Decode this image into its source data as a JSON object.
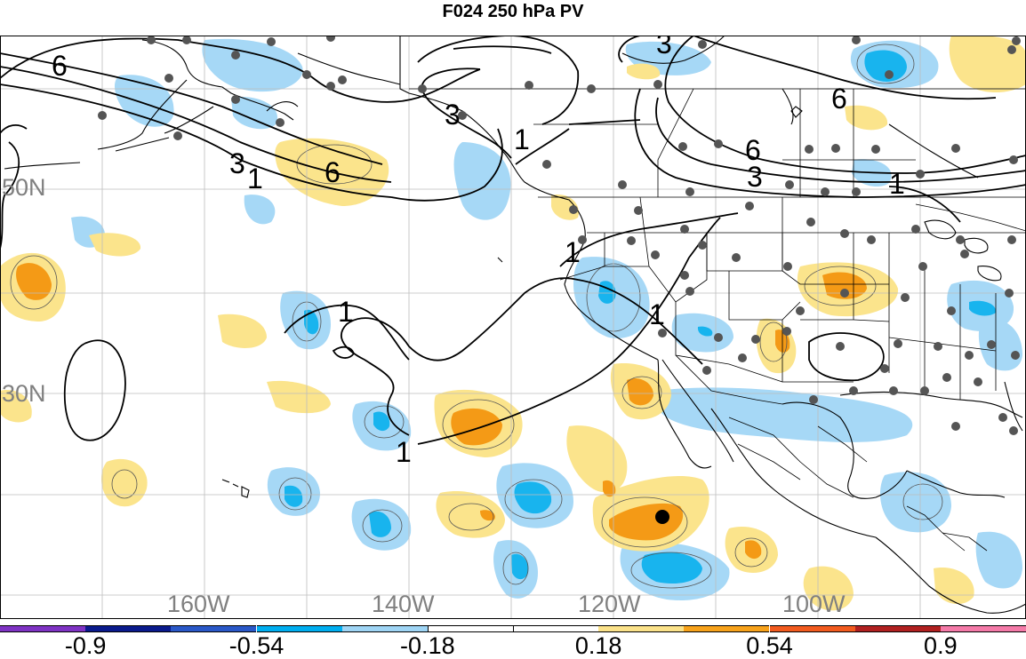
{
  "title": "F024 250 hPa PV",
  "lat_labels": [
    "50N",
    "30N"
  ],
  "lon_labels": [
    "160W",
    "140W",
    "120W",
    "100W"
  ],
  "contour_labels": [
    "6",
    "3",
    "1",
    "6",
    "1",
    "3",
    "1",
    "3",
    "6",
    "6",
    "3",
    "1",
    "1",
    "1",
    "1"
  ],
  "colorbar": {
    "colors": [
      "#7f33c4",
      "#0a1a8c",
      "#2a58c8",
      "#00aef0",
      "#9fd5f5",
      "#ffffff",
      "#ffffff",
      "#fbe28a",
      "#f7a21b",
      "#f25b1f",
      "#b02020",
      "#f47aa8"
    ],
    "labels": [
      "-0.9",
      "-0.54",
      "-0.18",
      "0.18",
      "0.54",
      "0.9"
    ]
  },
  "colors": {
    "light_blue": "#a6d8f6",
    "cyan": "#18b4ee",
    "light_yellow": "#fbe48c",
    "orange": "#f49a16"
  }
}
